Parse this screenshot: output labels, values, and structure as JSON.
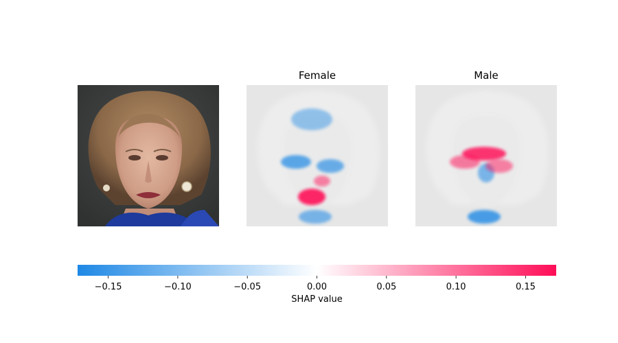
{
  "chart_data": {
    "type": "heatmap",
    "panels": [
      {
        "name": "original-image",
        "title": ""
      },
      {
        "name": "female-shap-map",
        "title": "Female"
      },
      {
        "name": "male-shap-map",
        "title": "Male"
      }
    ],
    "colorbar": {
      "label": "SHAP value",
      "range": [
        -0.172,
        0.172
      ],
      "ticks": [
        -0.15,
        -0.1,
        -0.05,
        0.0,
        0.05,
        0.1,
        0.15
      ],
      "tick_labels": [
        "−0.15",
        "−0.10",
        "−0.05",
        "0.00",
        "0.05",
        "0.10",
        "0.15"
      ],
      "colors": {
        "negative": "#1E88E5",
        "zero": "#FFFFFF",
        "positive": "#FF0D57"
      }
    },
    "heatmap_highlights": {
      "female": [
        {
          "region": "mouth",
          "sign": "positive",
          "value": 0.17
        },
        {
          "region": "left-cheek",
          "sign": "negative",
          "value": -0.12
        },
        {
          "region": "right-cheek",
          "sign": "negative",
          "value": -0.1
        },
        {
          "region": "chin",
          "sign": "negative",
          "value": -0.08
        },
        {
          "region": "under-nose",
          "sign": "positive",
          "value": 0.06
        },
        {
          "region": "forehead",
          "sign": "negative",
          "value": -0.05
        }
      ],
      "male": [
        {
          "region": "eyes",
          "sign": "positive",
          "value": 0.15
        },
        {
          "region": "chin",
          "sign": "negative",
          "value": -0.14
        },
        {
          "region": "nose",
          "sign": "negative",
          "value": -0.08
        },
        {
          "region": "left-cheek",
          "sign": "positive",
          "value": 0.07
        },
        {
          "region": "right-cheek",
          "sign": "positive",
          "value": 0.06
        }
      ]
    }
  }
}
